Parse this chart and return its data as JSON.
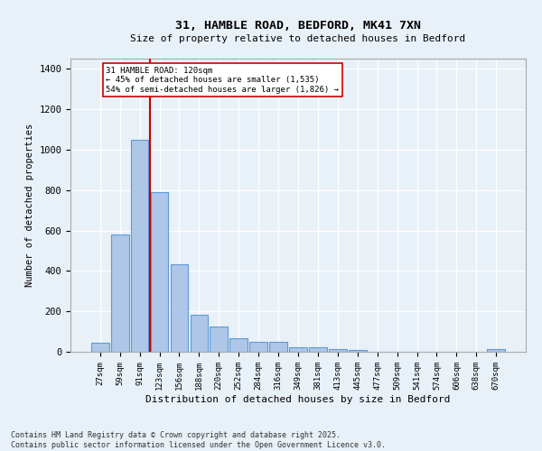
{
  "title1": "31, HAMBLE ROAD, BEDFORD, MK41 7XN",
  "title2": "Size of property relative to detached houses in Bedford",
  "xlabel": "Distribution of detached houses by size in Bedford",
  "ylabel": "Number of detached properties",
  "categories": [
    "27sqm",
    "59sqm",
    "91sqm",
    "123sqm",
    "156sqm",
    "188sqm",
    "220sqm",
    "252sqm",
    "284sqm",
    "316sqm",
    "349sqm",
    "381sqm",
    "413sqm",
    "445sqm",
    "477sqm",
    "509sqm",
    "541sqm",
    "574sqm",
    "606sqm",
    "638sqm",
    "670sqm"
  ],
  "values": [
    45,
    580,
    1050,
    790,
    435,
    185,
    125,
    65,
    48,
    48,
    22,
    22,
    15,
    10,
    0,
    0,
    0,
    0,
    0,
    0,
    12
  ],
  "bar_color": "#aec6e8",
  "bar_edge_color": "#5b9bd5",
  "vline_color": "#cc0000",
  "annotation_text": "31 HAMBLE ROAD: 120sqm\n← 45% of detached houses are smaller (1,535)\n54% of semi-detached houses are larger (1,826) →",
  "annotation_box_color": "#ffffff",
  "annotation_box_edge": "#cc0000",
  "ylim": [
    0,
    1450
  ],
  "yticks": [
    0,
    200,
    400,
    600,
    800,
    1000,
    1200,
    1400
  ],
  "bg_color": "#e8f0f8",
  "grid_color": "#ffffff",
  "footnote": "Contains HM Land Registry data © Crown copyright and database right 2025.\nContains public sector information licensed under the Open Government Licence v3.0."
}
